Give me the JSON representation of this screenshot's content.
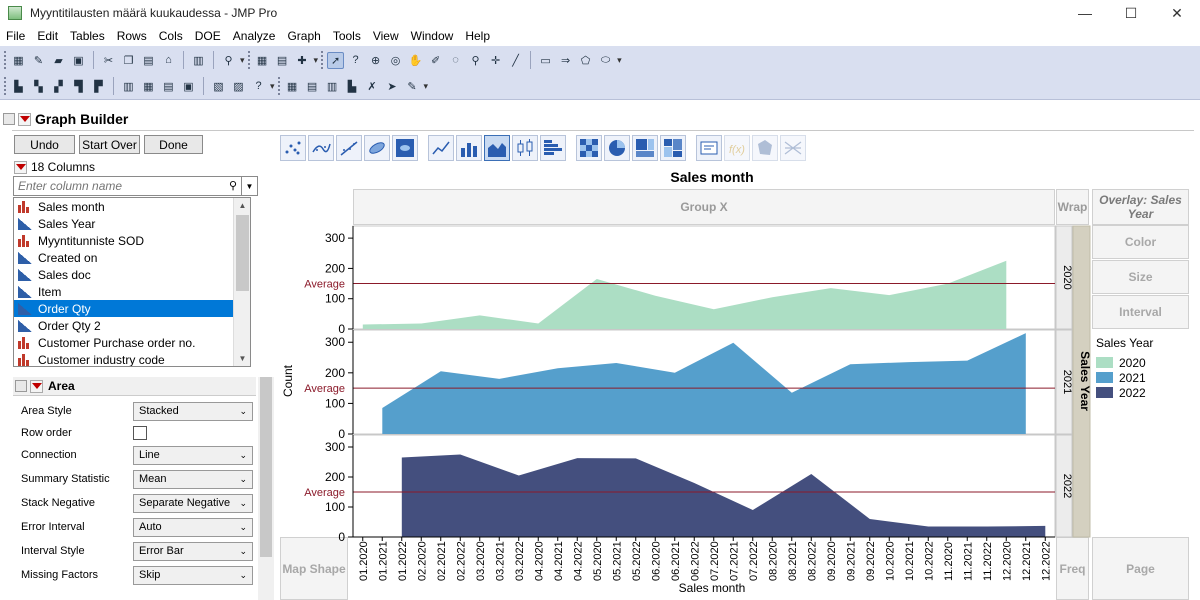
{
  "window": {
    "title": "Myyntitilausten määrä kuukaudessa - JMP Pro",
    "minimize": "—",
    "maximize": "☐",
    "close": "✕"
  },
  "menu": [
    "File",
    "Edit",
    "Tables",
    "Rows",
    "Cols",
    "DOE",
    "Analyze",
    "Graph",
    "Tools",
    "View",
    "Window",
    "Help"
  ],
  "graph_builder": {
    "title": "Graph Builder",
    "buttons": {
      "undo": "Undo",
      "start_over": "Start Over",
      "done": "Done"
    },
    "columns_count": "18 Columns",
    "search_placeholder": "Enter column name",
    "columns": [
      {
        "name": "Sales month",
        "type": "nominal"
      },
      {
        "name": "Sales Year",
        "type": "continuous"
      },
      {
        "name": "Myyntitunniste SOD",
        "type": "nominal"
      },
      {
        "name": "Created on",
        "type": "continuous"
      },
      {
        "name": "Sales doc",
        "type": "continuous"
      },
      {
        "name": "Item",
        "type": "continuous"
      },
      {
        "name": "Order Qty",
        "type": "continuous",
        "selected": true
      },
      {
        "name": "Order Qty 2",
        "type": "continuous"
      },
      {
        "name": "Customer Purchase order no.",
        "type": "nominal"
      },
      {
        "name": "Customer industry code",
        "type": "nominal"
      }
    ],
    "area_panel": {
      "title": "Area",
      "properties": [
        {
          "label": "Area Style",
          "value": "Stacked",
          "kind": "select"
        },
        {
          "label": "Row order",
          "value": "",
          "kind": "checkbox"
        },
        {
          "label": "Connection",
          "value": "Line",
          "kind": "select"
        },
        {
          "label": "Summary Statistic",
          "value": "Mean",
          "kind": "select"
        },
        {
          "label": "Stack Negative",
          "value": "Separate Negative",
          "kind": "select"
        },
        {
          "label": "Error Interval",
          "value": "Auto",
          "kind": "select"
        },
        {
          "label": "Interval Style",
          "value": "Error Bar",
          "kind": "select"
        },
        {
          "label": "Missing Factors",
          "value": "Skip",
          "kind": "select"
        }
      ]
    },
    "zones": {
      "group_x": "Group X",
      "wrap": "Wrap",
      "overlay": "Overlay: Sales Year",
      "color": "Color",
      "size": "Size",
      "interval": "Interval",
      "map_shape": "Map Shape",
      "freq": "Freq",
      "page": "Page"
    },
    "legend": {
      "title": "Sales Year",
      "items": [
        {
          "label": "2020",
          "color": "#acdec4"
        },
        {
          "label": "2021",
          "color": "#559fcc"
        },
        {
          "label": "2022",
          "color": "#444f7e"
        }
      ]
    }
  },
  "chart_data": {
    "type": "area",
    "title": "Sales month",
    "xlabel": "Sales month",
    "ylabel": "Count",
    "group_y_label": "Sales Year",
    "reference_line_label": "Average",
    "reference_line_color": "#8b1a2a",
    "ylim": [
      0,
      340
    ],
    "yticks": [
      0,
      100,
      200,
      300
    ],
    "categories": [
      "01.2020",
      "01.2021",
      "01.2022",
      "02.2020",
      "02.2021",
      "02.2022",
      "03.2020",
      "03.2021",
      "03.2022",
      "04.2020",
      "04.2021",
      "04.2022",
      "05.2020",
      "05.2021",
      "05.2022",
      "06.2020",
      "06.2021",
      "06.2022",
      "07.2020",
      "07.2021",
      "07.2022",
      "08.2020",
      "08.2021",
      "08.2022",
      "09.2020",
      "09.2021",
      "09.2022",
      "10.2020",
      "10.2021",
      "10.2022",
      "11.2020",
      "11.2021",
      "11.2022",
      "12.2020",
      "12.2021",
      "12.2022"
    ],
    "panels": [
      {
        "name": "2020",
        "color": "#acdec4",
        "average": 150,
        "x": [
          "01.2020",
          "02.2020",
          "03.2020",
          "04.2020",
          "05.2020",
          "06.2020",
          "07.2020",
          "08.2020",
          "09.2020",
          "10.2020",
          "11.2020",
          "12.2020"
        ],
        "values": [
          15,
          18,
          45,
          18,
          165,
          110,
          65,
          105,
          135,
          112,
          150,
          225
        ]
      },
      {
        "name": "2021",
        "color": "#559fcc",
        "average": 150,
        "x": [
          "01.2021",
          "02.2021",
          "03.2021",
          "04.2021",
          "05.2021",
          "06.2021",
          "07.2021",
          "08.2021",
          "09.2021",
          "10.2021",
          "11.2021",
          "12.2021"
        ],
        "values": [
          85,
          205,
          180,
          215,
          232,
          200,
          298,
          135,
          228,
          235,
          240,
          330
        ]
      },
      {
        "name": "2022",
        "color": "#444f7e",
        "average": 150,
        "x": [
          "01.2022",
          "02.2022",
          "03.2022",
          "04.2022",
          "05.2022",
          "06.2022",
          "07.2022",
          "08.2022",
          "09.2022",
          "10.2022",
          "11.2022",
          "12.2022"
        ],
        "values": [
          265,
          275,
          205,
          263,
          262,
          180,
          90,
          210,
          60,
          35,
          35,
          37
        ]
      }
    ],
    "grid": false,
    "legend_position": "right"
  }
}
